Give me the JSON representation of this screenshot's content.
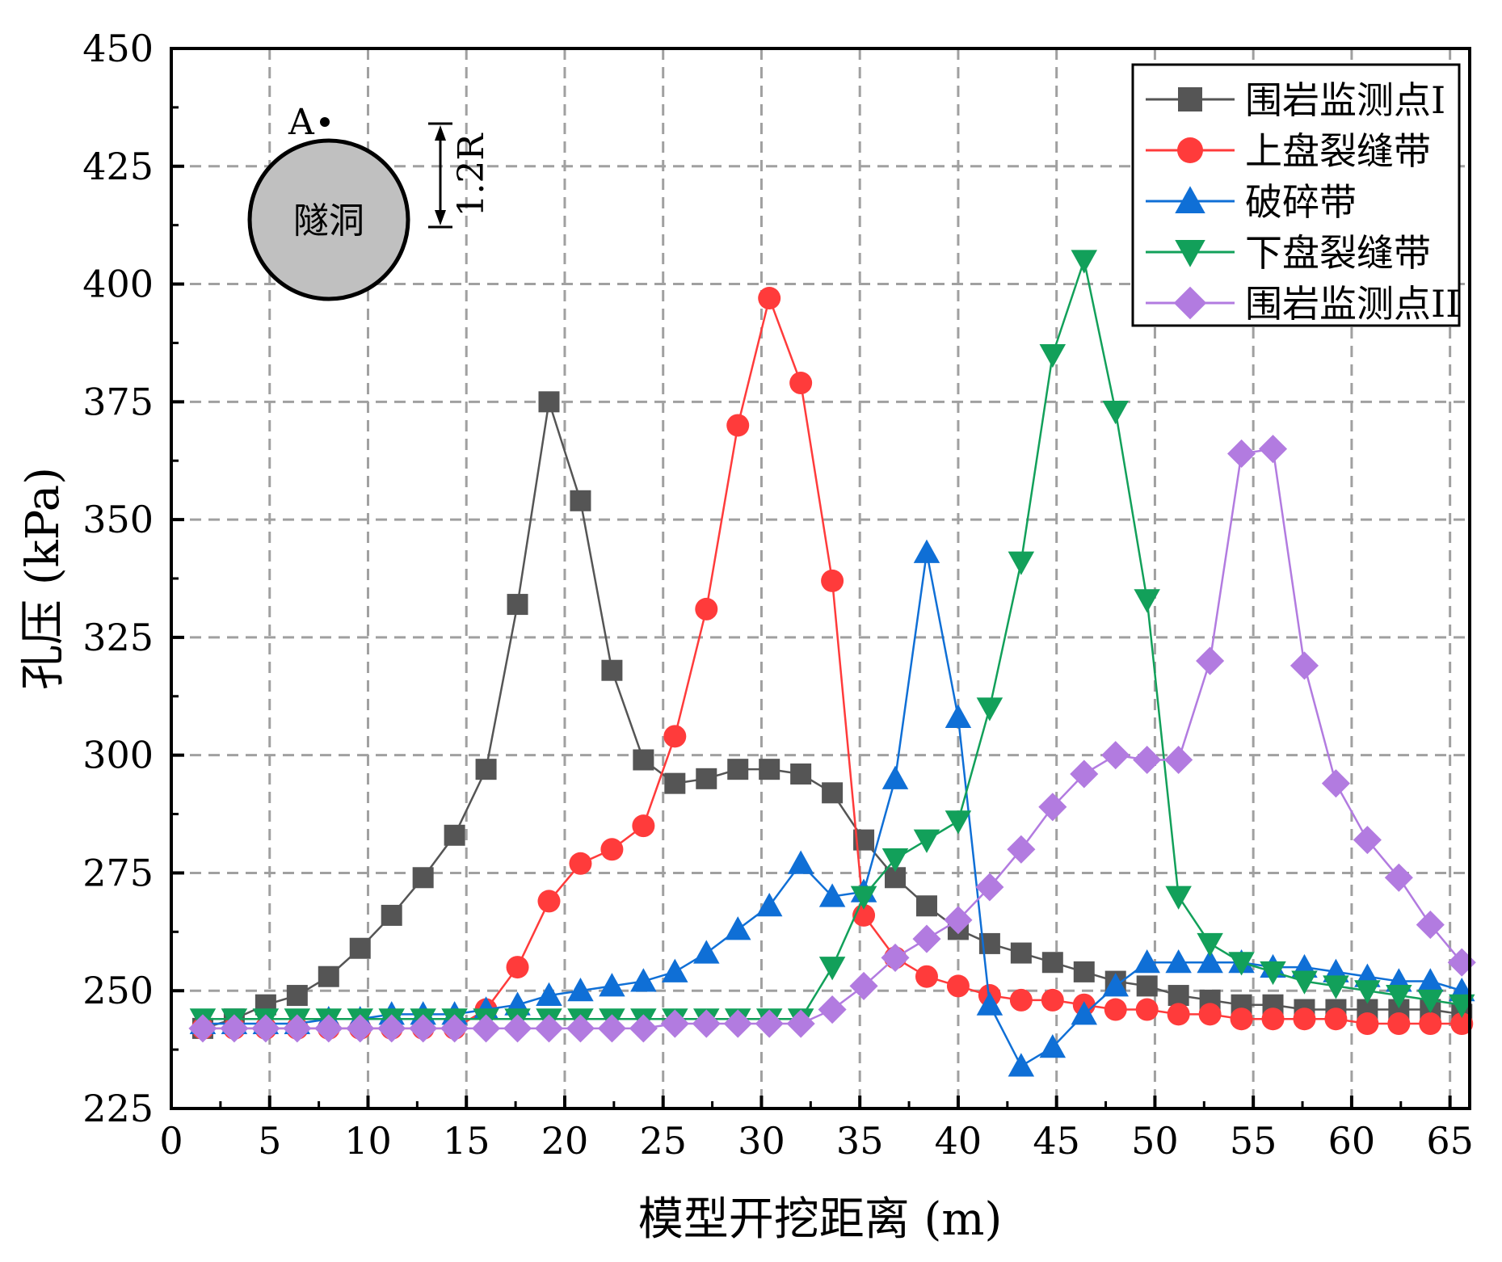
{
  "chart_data": {
    "type": "line",
    "title": "",
    "xlabel": "模型开挖距离 (m)",
    "ylabel": "孔压 (kPa)",
    "xlim": [
      0,
      66
    ],
    "ylim": [
      225,
      450
    ],
    "xticks": [
      "0",
      "5",
      "10",
      "15",
      "20",
      "25",
      "30",
      "35",
      "40",
      "45",
      "50",
      "55",
      "60",
      "65"
    ],
    "yticks": [
      "225",
      "250",
      "275",
      "300",
      "325",
      "350",
      "375",
      "400",
      "425",
      "450"
    ],
    "grid": true,
    "legend_position": "top-right",
    "x": [
      1.6,
      3.2,
      4.8,
      6.4,
      8.0,
      9.6,
      11.2,
      12.8,
      14.4,
      16.0,
      17.6,
      19.2,
      20.8,
      22.4,
      24.0,
      25.6,
      27.2,
      28.8,
      30.4,
      32.0,
      33.6,
      35.2,
      36.8,
      38.4,
      40.0,
      41.6,
      43.2,
      44.8,
      46.4,
      48.0,
      49.6,
      51.2,
      52.8,
      54.4,
      56.0,
      57.6,
      59.2,
      60.8,
      62.4,
      64.0,
      65.6
    ],
    "series": [
      {
        "name": "围岩监测点I",
        "color": "#555555",
        "marker": "square",
        "values": [
          242,
          244,
          247,
          249,
          253,
          259,
          266,
          274,
          283,
          297,
          332,
          375,
          354,
          318,
          299,
          294,
          295,
          297,
          297,
          296,
          292,
          282,
          274,
          268,
          263,
          260,
          258,
          256,
          254,
          252,
          251,
          249,
          248,
          247,
          247,
          246,
          246,
          246,
          246,
          246,
          245
        ]
      },
      {
        "name": "上盘裂缝带",
        "color": "#ff3b3b",
        "marker": "circle",
        "values": [
          242,
          242,
          242,
          242,
          242,
          242,
          242,
          242,
          242,
          246,
          255,
          269,
          277,
          280,
          285,
          304,
          331,
          370,
          397,
          379,
          337,
          266,
          257,
          253,
          251,
          249,
          248,
          248,
          247,
          246,
          246,
          245,
          245,
          244,
          244,
          244,
          244,
          243,
          243,
          243,
          243
        ]
      },
      {
        "name": "破碎带",
        "color": "#0f6fd6",
        "marker": "triangle-up",
        "values": [
          243,
          243,
          243,
          243,
          244,
          244,
          245,
          245,
          245,
          246,
          247,
          249,
          250,
          251,
          252,
          254,
          258,
          263,
          268,
          277,
          270,
          271,
          295,
          343,
          308,
          247,
          234,
          238,
          245,
          251,
          256,
          256,
          256,
          256,
          255,
          255,
          254,
          253,
          252,
          252,
          250
        ]
      },
      {
        "name": "下盘裂缝带",
        "color": "#12a05a",
        "marker": "triangle-down",
        "values": [
          244,
          244,
          244,
          244,
          244,
          244,
          244,
          244,
          244,
          244,
          244,
          244,
          244,
          244,
          244,
          244,
          244,
          244,
          244,
          244,
          255,
          270,
          278,
          282,
          286,
          310,
          341,
          385,
          405,
          373,
          333,
          270,
          260,
          256,
          254,
          252,
          251,
          250,
          249,
          248,
          247
        ]
      },
      {
        "name": "围岩监测点II",
        "color": "#b27be0",
        "marker": "diamond",
        "values": [
          242,
          242,
          242,
          242,
          242,
          242,
          242,
          242,
          242,
          242,
          242,
          242,
          242,
          242,
          242,
          243,
          243,
          243,
          243,
          243,
          246,
          251,
          257,
          261,
          265,
          272,
          280,
          289,
          296,
          300,
          299,
          299,
          320,
          364,
          365,
          319,
          294,
          282,
          274,
          264,
          256
        ]
      }
    ],
    "inset": {
      "circle_label": "隧洞",
      "point_label": "A",
      "distance_label": "1.2R"
    }
  }
}
